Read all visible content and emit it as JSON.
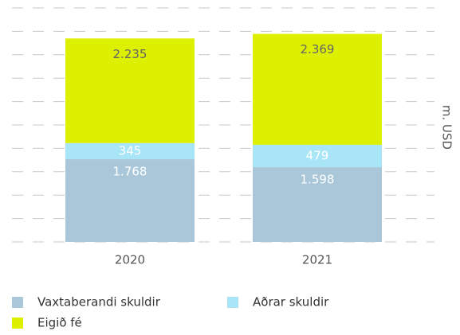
{
  "chart_data": {
    "type": "stacked-bar",
    "categories": [
      "2020",
      "2021"
    ],
    "series": [
      {
        "name": "Vaxtaberandi skuldir",
        "color": "#a9c7d8",
        "values": [
          1768,
          1598
        ],
        "value_labels": [
          "1.768",
          "1.598"
        ]
      },
      {
        "name": "Aðrar skuldir",
        "color": "#a8e6f7",
        "values": [
          345,
          479
        ],
        "value_labels": [
          "345",
          "479"
        ]
      },
      {
        "name": "Eigið fé",
        "color": "#dcf000",
        "values": [
          2235,
          2369
        ],
        "value_labels": [
          "2.235",
          "2.369"
        ]
      }
    ],
    "y_label": "m. USD",
    "ylim": [
      0,
      5000
    ],
    "yticks": [
      0,
      500,
      1000,
      1500,
      2000,
      2500,
      3000,
      3500,
      4000,
      4500,
      5000
    ],
    "grid": true,
    "legend": "bottom"
  }
}
